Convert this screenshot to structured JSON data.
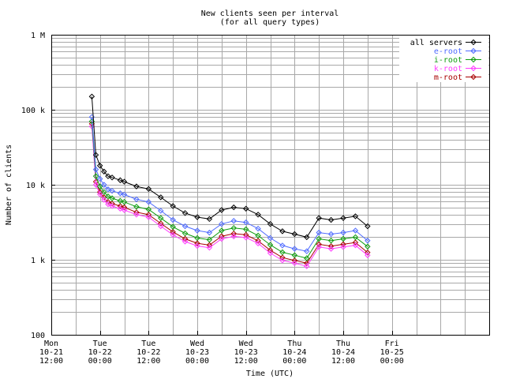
{
  "chart_data": {
    "type": "line",
    "title": "New clients seen per interval",
    "subtitle": "(for all query types)",
    "xlabel": "Time (UTC)",
    "ylabel": "Number of clients",
    "y_scale": "log",
    "ylim": [
      100,
      1000000
    ],
    "yticks": [
      {
        "value": 100,
        "label": "100"
      },
      {
        "value": 1000,
        "label": "1 k"
      },
      {
        "value": 10000,
        "label": "10 k"
      },
      {
        "value": 100000,
        "label": "100 k"
      },
      {
        "value": 1000000,
        "label": "1 M"
      }
    ],
    "xlim": [
      0,
      108
    ],
    "xunit": "hours after Mon 10-21 12:00 UTC",
    "xticks": [
      {
        "value": 0,
        "lines": [
          "Mon",
          "10-21",
          "12:00"
        ]
      },
      {
        "value": 12,
        "lines": [
          "Tue",
          "10-22",
          "00:00"
        ]
      },
      {
        "value": 24,
        "lines": [
          "Tue",
          "10-22",
          "12:00"
        ]
      },
      {
        "value": 36,
        "lines": [
          "Wed",
          "10-23",
          "00:00"
        ]
      },
      {
        "value": 48,
        "lines": [
          "Wed",
          "10-23",
          "12:00"
        ]
      },
      {
        "value": 60,
        "lines": [
          "Thu",
          "10-24",
          "00:00"
        ]
      },
      {
        "value": 72,
        "lines": [
          "Thu",
          "10-24",
          "12:00"
        ]
      },
      {
        "value": 84,
        "lines": [
          "Fri",
          "10-25",
          "00:00"
        ]
      }
    ],
    "grid": true,
    "legend_position": "top-right",
    "series": [
      {
        "name": "all servers",
        "color": "#000000",
        "marker": "diamond",
        "x": [
          10,
          11,
          12,
          13,
          14,
          15,
          17,
          18,
          21,
          24,
          27,
          30,
          33,
          36,
          39,
          42,
          45,
          48,
          51,
          54,
          57,
          60,
          63,
          66,
          69,
          72,
          75,
          78
        ],
        "values": [
          150000,
          25000,
          18000,
          15000,
          13000,
          12500,
          11500,
          11000,
          9500,
          8800,
          6800,
          5200,
          4200,
          3700,
          3500,
          4600,
          5000,
          4800,
          4000,
          3000,
          2400,
          2200,
          2000,
          3600,
          3400,
          3600,
          3800,
          2800
        ]
      },
      {
        "name": "e-root",
        "color": "#4f6bff",
        "marker": "diamond",
        "x": [
          10,
          11,
          12,
          13,
          14,
          15,
          17,
          18,
          21,
          24,
          27,
          30,
          33,
          36,
          39,
          42,
          45,
          48,
          51,
          54,
          57,
          60,
          63,
          66,
          69,
          72,
          75,
          78
        ],
        "values": [
          80000,
          16000,
          12000,
          10000,
          8700,
          8300,
          7700,
          7400,
          6400,
          5900,
          4500,
          3400,
          2800,
          2450,
          2300,
          3000,
          3300,
          3150,
          2600,
          1950,
          1550,
          1400,
          1300,
          2300,
          2200,
          2300,
          2450,
          1800
        ]
      },
      {
        "name": "i-root",
        "color": "#0e9c0e",
        "marker": "diamond",
        "x": [
          10,
          11,
          12,
          13,
          14,
          15,
          17,
          18,
          21,
          24,
          27,
          30,
          33,
          36,
          39,
          42,
          45,
          48,
          51,
          54,
          57,
          60,
          63,
          66,
          69,
          72,
          75,
          78
        ],
        "values": [
          70000,
          13000,
          9500,
          8000,
          7000,
          6600,
          6100,
          5900,
          5100,
          4700,
          3600,
          2750,
          2250,
          1950,
          1850,
          2450,
          2650,
          2550,
          2100,
          1580,
          1260,
          1150,
          1050,
          1900,
          1800,
          1900,
          2000,
          1500
        ]
      },
      {
        "name": "k-root",
        "color": "#ff3dff",
        "marker": "diamond",
        "x": [
          10,
          11,
          12,
          13,
          14,
          15,
          17,
          18,
          21,
          24,
          27,
          30,
          33,
          36,
          39,
          42,
          45,
          48,
          51,
          54,
          57,
          60,
          63,
          66,
          69,
          72,
          75,
          78
        ],
        "values": [
          60000,
          10000,
          7500,
          6300,
          5500,
          5200,
          4800,
          4600,
          4000,
          3700,
          2800,
          2150,
          1750,
          1530,
          1450,
          1900,
          2050,
          1980,
          1650,
          1230,
          980,
          900,
          820,
          1480,
          1400,
          1480,
          1560,
          1150
        ]
      },
      {
        "name": "m-root",
        "color": "#a80000",
        "marker": "diamond",
        "x": [
          10,
          11,
          12,
          13,
          14,
          15,
          17,
          18,
          21,
          24,
          27,
          30,
          33,
          36,
          39,
          42,
          45,
          48,
          51,
          54,
          57,
          60,
          63,
          66,
          69,
          72,
          75,
          78
        ],
        "values": [
          65000,
          11000,
          8000,
          6800,
          5900,
          5600,
          5200,
          5000,
          4300,
          4000,
          3050,
          2350,
          1900,
          1660,
          1570,
          2060,
          2230,
          2150,
          1790,
          1340,
          1070,
          980,
          900,
          1610,
          1520,
          1610,
          1700,
          1250
        ]
      }
    ]
  }
}
